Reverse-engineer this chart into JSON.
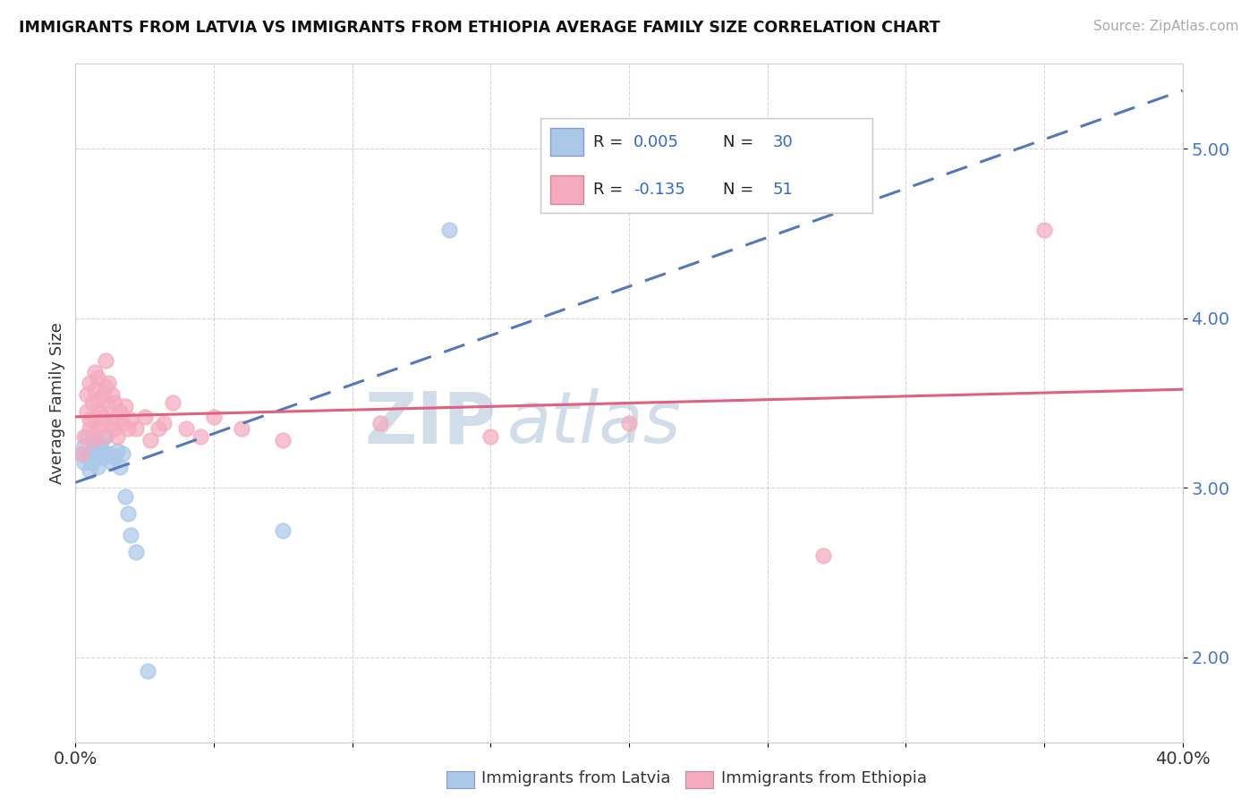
{
  "title": "IMMIGRANTS FROM LATVIA VS IMMIGRANTS FROM ETHIOPIA AVERAGE FAMILY SIZE CORRELATION CHART",
  "source": "Source: ZipAtlas.com",
  "ylabel": "Average Family Size",
  "legend_label1": "Immigrants from Latvia",
  "legend_label2": "Immigrants from Ethiopia",
  "legend_r1": "R = 0.005",
  "legend_n1": "N = 30",
  "legend_r2": "R = -0.135",
  "legend_n2": "N = 51",
  "xlim": [
    0.0,
    0.4
  ],
  "ylim": [
    1.5,
    5.5
  ],
  "yticks": [
    2.0,
    3.0,
    4.0,
    5.0
  ],
  "xticks": [
    0.0,
    0.05,
    0.1,
    0.15,
    0.2,
    0.25,
    0.3,
    0.35,
    0.4
  ],
  "xtick_labels": [
    "0.0%",
    "",
    "",
    "",
    "",
    "",
    "",
    "",
    "40.0%"
  ],
  "color_latvia": "#aac8e8",
  "color_ethiopia": "#f5aabf",
  "line_color_latvia": "#5577bb",
  "line_color_ethiopia": "#e06080",
  "watermark_left": "ZIP",
  "watermark_right": "atlas",
  "latvia_points": [
    [
      0.002,
      3.2
    ],
    [
      0.003,
      3.15
    ],
    [
      0.003,
      3.25
    ],
    [
      0.004,
      3.18
    ],
    [
      0.004,
      3.3
    ],
    [
      0.005,
      3.2
    ],
    [
      0.005,
      3.1
    ],
    [
      0.006,
      3.22
    ],
    [
      0.006,
      3.15
    ],
    [
      0.007,
      3.28
    ],
    [
      0.007,
      3.18
    ],
    [
      0.008,
      3.2
    ],
    [
      0.008,
      3.12
    ],
    [
      0.009,
      3.25
    ],
    [
      0.01,
      3.22
    ],
    [
      0.01,
      3.18
    ],
    [
      0.011,
      3.3
    ],
    [
      0.012,
      3.2
    ],
    [
      0.013,
      3.15
    ],
    [
      0.014,
      3.18
    ],
    [
      0.015,
      3.22
    ],
    [
      0.016,
      3.12
    ],
    [
      0.017,
      3.2
    ],
    [
      0.018,
      2.95
    ],
    [
      0.019,
      2.85
    ],
    [
      0.02,
      2.72
    ],
    [
      0.022,
      2.62
    ],
    [
      0.026,
      1.92
    ],
    [
      0.075,
      2.75
    ],
    [
      0.135,
      4.52
    ]
  ],
  "ethiopia_points": [
    [
      0.002,
      3.2
    ],
    [
      0.003,
      3.3
    ],
    [
      0.004,
      3.45
    ],
    [
      0.004,
      3.55
    ],
    [
      0.005,
      3.4
    ],
    [
      0.005,
      3.62
    ],
    [
      0.005,
      3.35
    ],
    [
      0.006,
      3.5
    ],
    [
      0.006,
      3.28
    ],
    [
      0.007,
      3.68
    ],
    [
      0.007,
      3.42
    ],
    [
      0.007,
      3.58
    ],
    [
      0.008,
      3.52
    ],
    [
      0.008,
      3.35
    ],
    [
      0.008,
      3.65
    ],
    [
      0.009,
      3.45
    ],
    [
      0.009,
      3.38
    ],
    [
      0.01,
      3.55
    ],
    [
      0.01,
      3.3
    ],
    [
      0.01,
      3.42
    ],
    [
      0.011,
      3.6
    ],
    [
      0.011,
      3.75
    ],
    [
      0.012,
      3.48
    ],
    [
      0.012,
      3.62
    ],
    [
      0.013,
      3.38
    ],
    [
      0.013,
      3.55
    ],
    [
      0.014,
      3.5
    ],
    [
      0.014,
      3.35
    ],
    [
      0.015,
      3.42
    ],
    [
      0.015,
      3.3
    ],
    [
      0.016,
      3.45
    ],
    [
      0.017,
      3.38
    ],
    [
      0.018,
      3.48
    ],
    [
      0.019,
      3.35
    ],
    [
      0.02,
      3.4
    ],
    [
      0.022,
      3.35
    ],
    [
      0.025,
      3.42
    ],
    [
      0.027,
      3.28
    ],
    [
      0.03,
      3.35
    ],
    [
      0.032,
      3.38
    ],
    [
      0.035,
      3.5
    ],
    [
      0.04,
      3.35
    ],
    [
      0.045,
      3.3
    ],
    [
      0.05,
      3.42
    ],
    [
      0.06,
      3.35
    ],
    [
      0.075,
      3.28
    ],
    [
      0.11,
      3.38
    ],
    [
      0.15,
      3.3
    ],
    [
      0.2,
      3.38
    ],
    [
      0.27,
      2.6
    ],
    [
      0.35,
      4.52
    ]
  ]
}
